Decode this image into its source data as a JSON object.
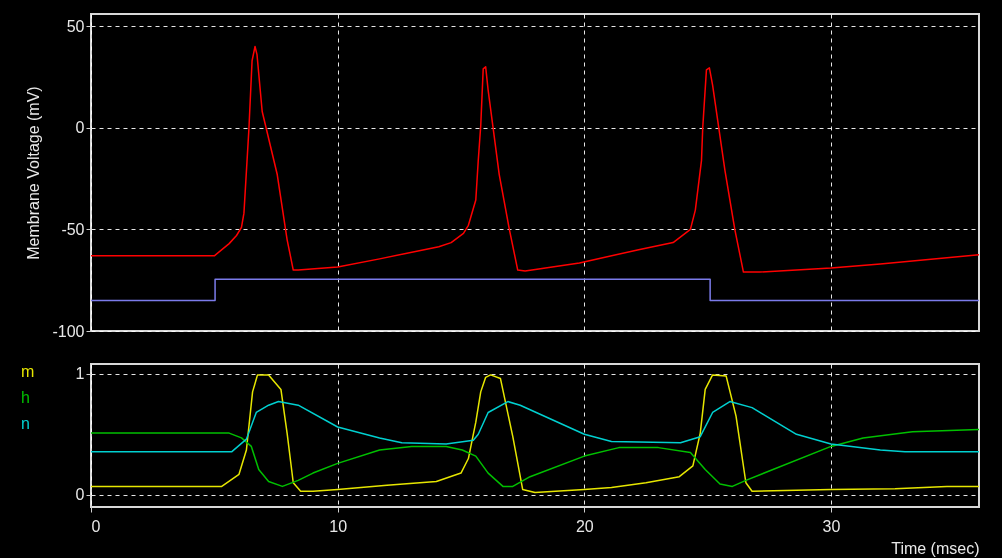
{
  "chart_data": [
    {
      "type": "line",
      "ylabel": "Membrane Voltage (mV)",
      "xlim": [
        0,
        36
      ],
      "xticks": [
        0,
        10,
        20,
        30
      ],
      "ylim": [
        -100,
        56
      ],
      "yticks": [
        50,
        0,
        -50,
        -100
      ],
      "grid": true,
      "tick_labels": "y",
      "series": [
        {
          "color": "#ff0000",
          "x": [
            0,
            5,
            5.6,
            5.9,
            6.1,
            6.2,
            6.4,
            6.53,
            6.65,
            6.73,
            6.94,
            7.55,
            7.95,
            8.2,
            8.4,
            10,
            11.7,
            14.1,
            14.6,
            15.1,
            15.3,
            15.6,
            15.7,
            15.8,
            15.9,
            16.0,
            16.1,
            16.55,
            16.96,
            17.3,
            17.6,
            19.8,
            22.2,
            23.6,
            24.3,
            24.5,
            24.75,
            24.8,
            24.95,
            25.07,
            25.2,
            25.7,
            26.1,
            26.45,
            27.1,
            30,
            32,
            36
          ],
          "values": [
            -63,
            -63,
            -57,
            -53,
            -49,
            -42,
            -1,
            33,
            40,
            36,
            8,
            -23,
            -55,
            -70,
            -70,
            -68.5,
            -64.5,
            -58.5,
            -56.5,
            -52,
            -48,
            -35.5,
            -16,
            1,
            29,
            30,
            18.5,
            -23,
            -50,
            -70,
            -70.5,
            -66.5,
            -60,
            -56.5,
            -50,
            -40.5,
            -16,
            0,
            28.5,
            29.5,
            21,
            -21,
            -50,
            -71,
            -71,
            -69,
            -67,
            -62.5
          ]
        },
        {
          "type": "step",
          "color": "#7b7bea",
          "x": [
            0,
            5.03,
            25.1,
            36
          ],
          "values": [
            -85,
            -74.5,
            -85,
            -85
          ]
        }
      ]
    },
    {
      "type": "line",
      "xlabel": "Time (msec)",
      "xlim": [
        0,
        36
      ],
      "xticks": [
        0,
        10,
        20,
        30
      ],
      "ylim": [
        -0.1,
        1.08
      ],
      "yticks": [
        0,
        1
      ],
      "grid": true,
      "legend": "left",
      "series": [
        {
          "name": "m",
          "color": "#e6e600",
          "x": [
            0,
            5.3,
            6.0,
            6.3,
            6.55,
            6.75,
            7.2,
            7.7,
            7.95,
            8.2,
            8.5,
            9,
            10,
            12,
            14,
            15,
            15.3,
            15.6,
            15.8,
            16.0,
            16.2,
            16.6,
            17.1,
            17.5,
            18.0,
            20,
            21.1,
            22.5,
            23.85,
            24.4,
            24.7,
            24.9,
            25.2,
            25.75,
            26.15,
            26.55,
            26.8,
            30,
            32.6,
            34.7,
            36
          ],
          "values": [
            0.07,
            0.07,
            0.17,
            0.37,
            0.85,
            0.99,
            0.99,
            0.87,
            0.51,
            0.1,
            0.03,
            0.03,
            0.045,
            0.08,
            0.11,
            0.18,
            0.3,
            0.6,
            0.85,
            0.97,
            0.99,
            0.96,
            0.48,
            0.045,
            0.02,
            0.045,
            0.06,
            0.1,
            0.15,
            0.24,
            0.51,
            0.87,
            0.99,
            0.98,
            0.65,
            0.1,
            0.03,
            0.045,
            0.05,
            0.07,
            0.07
          ]
        },
        {
          "name": "h",
          "color": "#00c000",
          "x": [
            0,
            5.6,
            6.1,
            6.5,
            6.8,
            7.2,
            7.76,
            8.4,
            9,
            10,
            11.7,
            13,
            14.4,
            15.05,
            15.6,
            16.1,
            16.7,
            17.1,
            17.8,
            20,
            21.4,
            23.0,
            24.3,
            24.9,
            25.5,
            26.0,
            26.55,
            30,
            31.3,
            33.3,
            36
          ],
          "values": [
            0.51,
            0.51,
            0.47,
            0.4,
            0.21,
            0.11,
            0.07,
            0.12,
            0.18,
            0.26,
            0.37,
            0.4,
            0.4,
            0.37,
            0.32,
            0.18,
            0.07,
            0.07,
            0.15,
            0.32,
            0.39,
            0.39,
            0.35,
            0.21,
            0.09,
            0.07,
            0.12,
            0.4,
            0.47,
            0.52,
            0.54
          ]
        },
        {
          "name": "n",
          "color": "#00d0d0",
          "x": [
            0,
            5.7,
            6.3,
            6.7,
            7.2,
            7.6,
            8.4,
            10,
            11.7,
            12.6,
            14.4,
            15.5,
            15.7,
            16.1,
            16.9,
            17.4,
            20,
            21.1,
            23.9,
            24.7,
            25.2,
            25.9,
            26.8,
            28.6,
            30,
            32,
            33,
            36
          ],
          "values": [
            0.355,
            0.355,
            0.46,
            0.68,
            0.74,
            0.77,
            0.74,
            0.56,
            0.47,
            0.43,
            0.42,
            0.45,
            0.5,
            0.68,
            0.77,
            0.74,
            0.5,
            0.44,
            0.43,
            0.48,
            0.68,
            0.77,
            0.72,
            0.5,
            0.42,
            0.37,
            0.355,
            0.355
          ]
        }
      ]
    }
  ]
}
